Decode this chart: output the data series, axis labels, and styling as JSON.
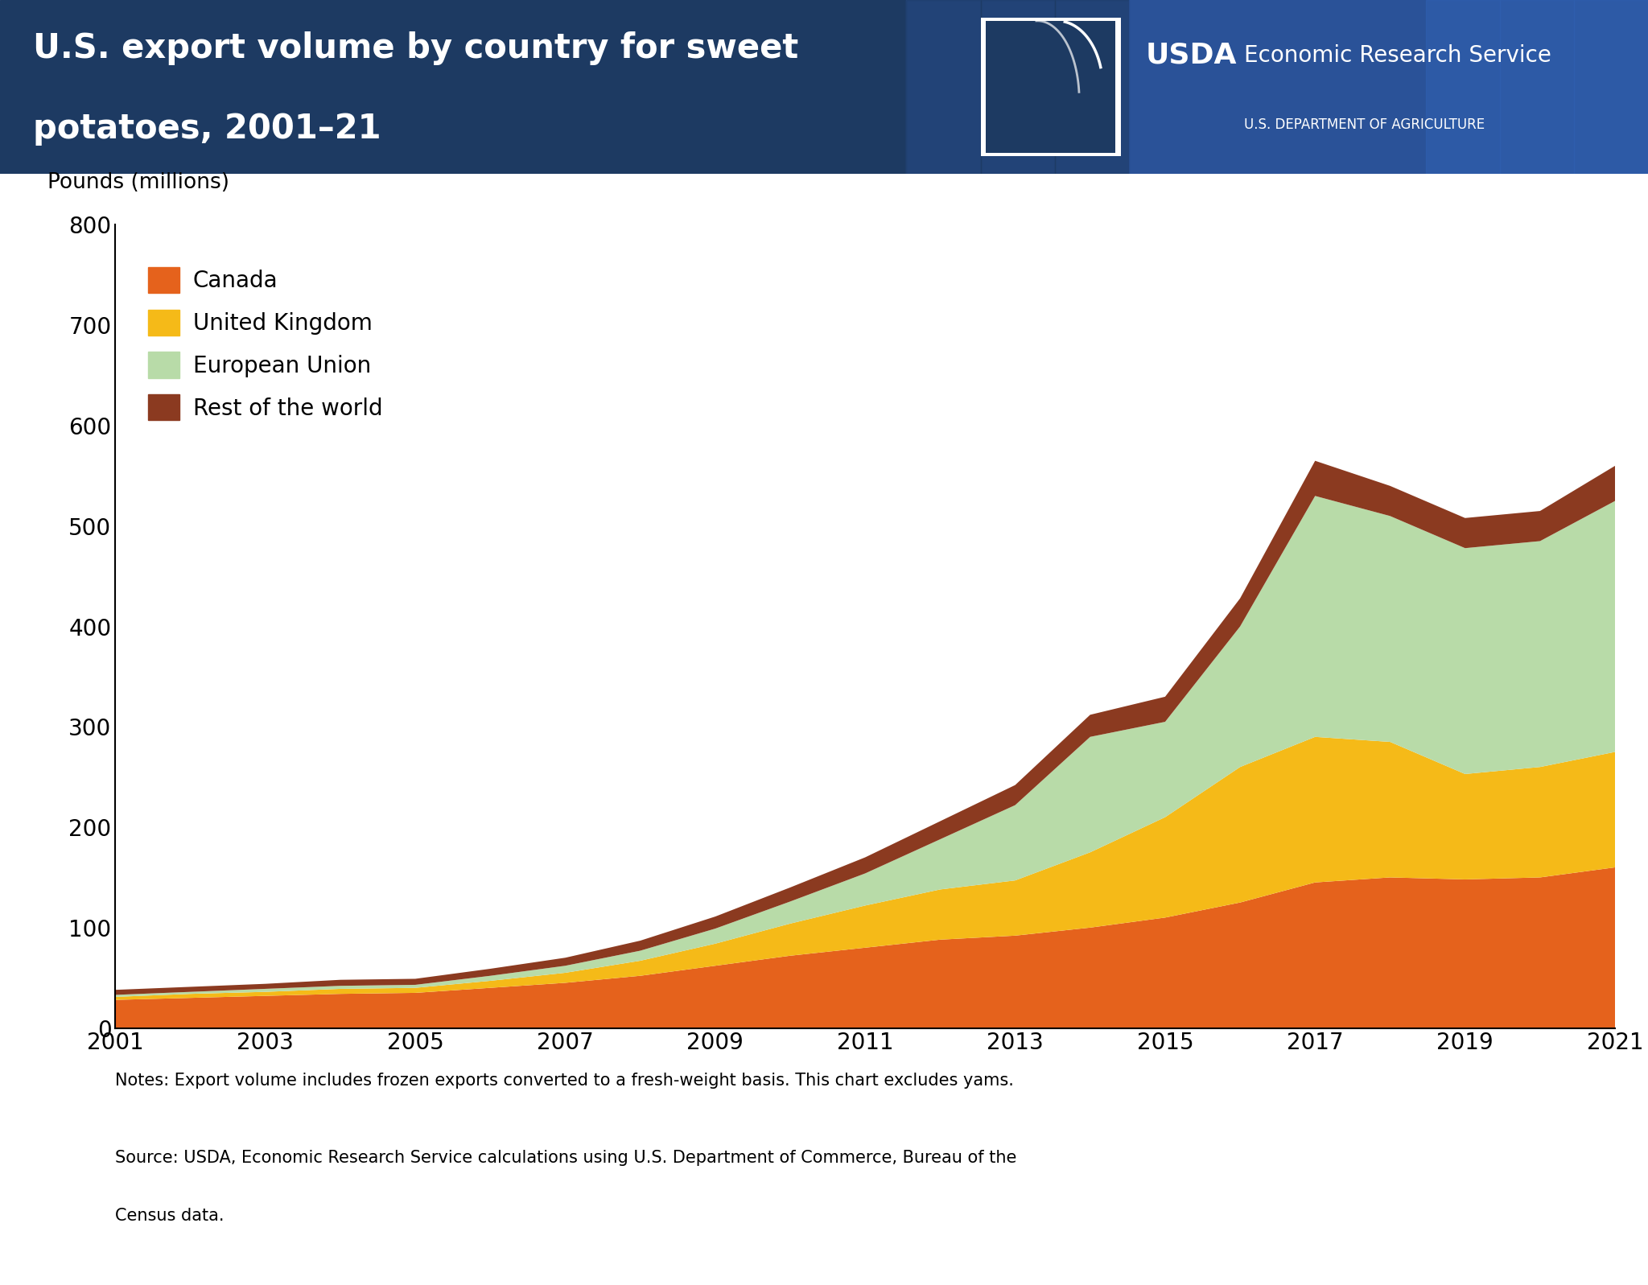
{
  "title_line1": "U.S. export volume by country for sweet",
  "title_line2": "potatoes, 2001–21",
  "header_bg_color": "#1e3f6e",
  "header_bg_color2": "#2a5298",
  "title_color": "#ffffff",
  "chart_bg_color": "#ffffff",
  "ylabel": "Pounds (millions)",
  "years": [
    2001,
    2002,
    2003,
    2004,
    2005,
    2006,
    2007,
    2008,
    2009,
    2010,
    2011,
    2012,
    2013,
    2014,
    2015,
    2016,
    2017,
    2018,
    2019,
    2020,
    2021
  ],
  "canada": [
    28,
    30,
    32,
    34,
    35,
    40,
    45,
    52,
    62,
    72,
    80,
    88,
    92,
    100,
    110,
    125,
    145,
    150,
    148,
    150,
    160
  ],
  "united_kingdom": [
    3,
    4,
    4,
    5,
    5,
    7,
    10,
    15,
    22,
    32,
    42,
    50,
    55,
    75,
    100,
    135,
    145,
    135,
    105,
    110,
    115
  ],
  "european_union": [
    2,
    2,
    3,
    3,
    3,
    5,
    7,
    10,
    15,
    22,
    32,
    50,
    75,
    115,
    95,
    140,
    240,
    225,
    225,
    225,
    250
  ],
  "rest_of_world": [
    5,
    5,
    5,
    6,
    6,
    7,
    8,
    10,
    12,
    14,
    16,
    18,
    20,
    22,
    25,
    28,
    35,
    30,
    30,
    30,
    35
  ],
  "canada_color": "#e5621c",
  "uk_color": "#f5ba18",
  "eu_color": "#b8dba8",
  "row_color": "#8b3a20",
  "ylim": [
    0,
    800
  ],
  "yticks": [
    0,
    100,
    200,
    300,
    400,
    500,
    600,
    700,
    800
  ],
  "xtick_years": [
    2001,
    2003,
    2005,
    2007,
    2009,
    2011,
    2013,
    2015,
    2017,
    2019,
    2021
  ],
  "notes": "Notes: Export volume includes frozen exports converted to a fresh-weight basis. This chart excludes yams.",
  "source1": "Source: USDA, Economic Research Service calculations using U.S. Department of Commerce, Bureau of the",
  "source2": "Census data.",
  "usda_label": "USDA",
  "usda_text": "Economic Research Service",
  "usda_subtitle": "U.S. DEPARTMENT OF AGRICULTURE"
}
